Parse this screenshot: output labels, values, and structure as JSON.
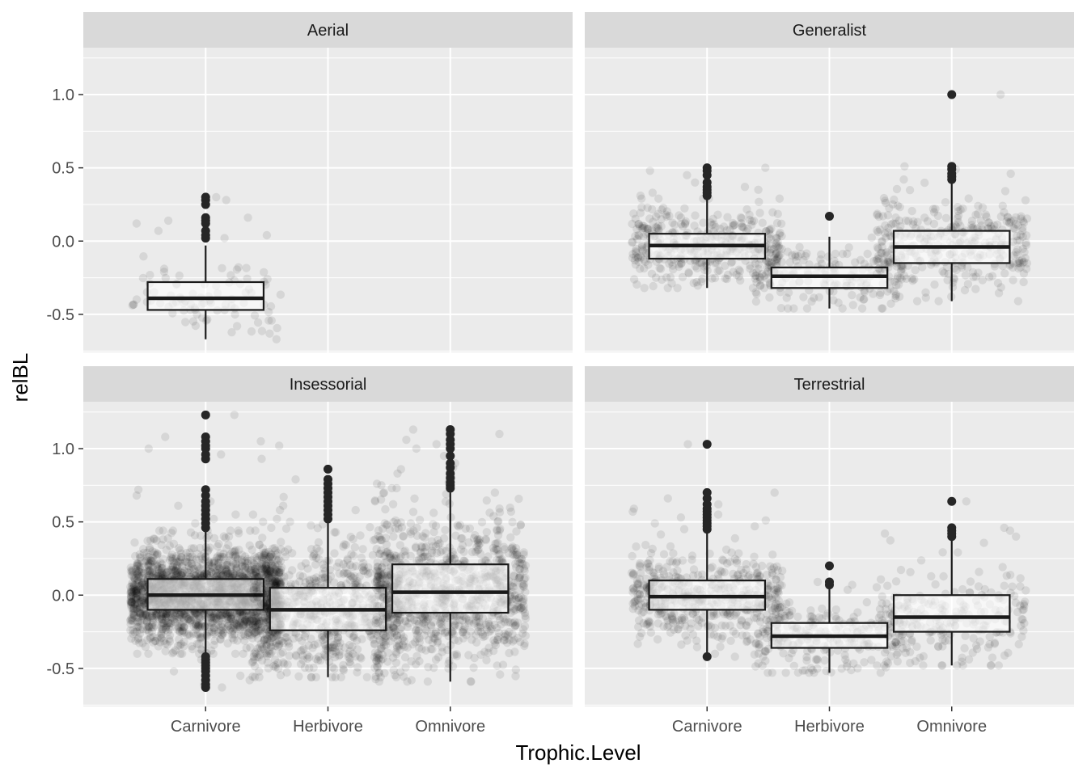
{
  "chart_data": {
    "type": "boxplot",
    "facet_layout": "2x2",
    "xlabel": "Trophic.Level",
    "ylabel": "relBL",
    "categories": [
      "Carnivore",
      "Herbivore",
      "Omnivore"
    ],
    "ylim": [
      -0.76,
      1.32
    ],
    "y_ticks": [
      -0.5,
      0.0,
      0.5,
      1.0
    ],
    "y_tick_labels": [
      "-0.5",
      "0.0",
      "0.5",
      "1.0"
    ],
    "grid": true,
    "colors": {
      "panel_background": "#ebebeb",
      "strip_background": "#d9d9d9",
      "grid": "#ffffff",
      "box": "#1a1a1a",
      "points": "#000000"
    },
    "facets": [
      {
        "name": "Aerial",
        "boxes": [
          {
            "category": "Carnivore",
            "whisker_low": -0.67,
            "q1": -0.47,
            "median": -0.39,
            "q3": -0.28,
            "whisker_high": -0.03,
            "outliers": [
              0.02,
              0.04,
              0.07,
              0.12,
              0.14,
              0.16,
              0.25,
              0.28,
              0.3
            ],
            "n_points": 90
          },
          {
            "category": "Herbivore",
            "empty": true
          },
          {
            "category": "Omnivore",
            "empty": true
          }
        ]
      },
      {
        "name": "Generalist",
        "boxes": [
          {
            "category": "Carnivore",
            "whisker_low": -0.32,
            "q1": -0.12,
            "median": -0.03,
            "q3": 0.05,
            "whisker_high": 0.29,
            "outliers": [
              0.31,
              0.33,
              0.35,
              0.37,
              0.4,
              0.45,
              0.48,
              0.5
            ],
            "n_points": 420
          },
          {
            "category": "Herbivore",
            "whisker_low": -0.46,
            "q1": -0.32,
            "median": -0.24,
            "q3": -0.18,
            "whisker_high": 0.03,
            "outliers": [
              0.17
            ],
            "n_points": 170
          },
          {
            "category": "Omnivore",
            "whisker_low": -0.41,
            "q1": -0.15,
            "median": -0.04,
            "q3": 0.07,
            "whisker_high": 0.4,
            "outliers": [
              0.42,
              0.44,
              0.46,
              0.49,
              0.51,
              1.0
            ],
            "n_points": 360
          }
        ]
      },
      {
        "name": "Insessorial",
        "boxes": [
          {
            "category": "Carnivore",
            "whisker_low": -0.4,
            "q1": -0.1,
            "median": 0.0,
            "q3": 0.11,
            "whisker_high": 0.44,
            "outliers": [
              -0.63,
              -0.61,
              -0.58,
              -0.55,
              -0.52,
              -0.5,
              -0.48,
              -0.46,
              -0.44,
              -0.42,
              0.46,
              0.49,
              0.52,
              0.55,
              0.58,
              0.61,
              0.64,
              0.68,
              0.72,
              0.93,
              0.96,
              1.0,
              1.02,
              1.05,
              1.08,
              1.23
            ],
            "n_points": 2200
          },
          {
            "category": "Herbivore",
            "whisker_low": -0.56,
            "q1": -0.24,
            "median": -0.1,
            "q3": 0.05,
            "whisker_high": 0.5,
            "outliers": [
              0.52,
              0.55,
              0.58,
              0.61,
              0.64,
              0.67,
              0.7,
              0.73,
              0.76,
              0.79,
              0.86
            ],
            "n_points": 800
          },
          {
            "category": "Omnivore",
            "whisker_low": -0.59,
            "q1": -0.12,
            "median": 0.02,
            "q3": 0.21,
            "whisker_high": 0.7,
            "outliers": [
              0.73,
              0.75,
              0.77,
              0.8,
              0.83,
              0.87,
              0.9,
              0.95,
              1.0,
              1.03,
              1.06,
              1.1,
              1.13
            ],
            "n_points": 1000
          }
        ]
      },
      {
        "name": "Terrestrial",
        "boxes": [
          {
            "category": "Carnivore",
            "whisker_low": -0.4,
            "q1": -0.1,
            "median": -0.01,
            "q3": 0.1,
            "whisker_high": 0.43,
            "outliers": [
              -0.42,
              0.45,
              0.47,
              0.49,
              0.51,
              0.53,
              0.55,
              0.57,
              0.59,
              0.62,
              0.66,
              0.7,
              1.03
            ],
            "n_points": 520
          },
          {
            "category": "Herbivore",
            "whisker_low": -0.53,
            "q1": -0.36,
            "median": -0.28,
            "q3": -0.19,
            "whisker_high": 0.06,
            "outliers": [
              0.07,
              0.09,
              0.2
            ],
            "n_points": 230
          },
          {
            "category": "Omnivore",
            "whisker_low": -0.48,
            "q1": -0.25,
            "median": -0.15,
            "q3": 0.0,
            "whisker_high": 0.38,
            "outliers": [
              0.4,
              0.42,
              0.44,
              0.46,
              0.64
            ],
            "n_points": 240
          }
        ]
      }
    ]
  }
}
